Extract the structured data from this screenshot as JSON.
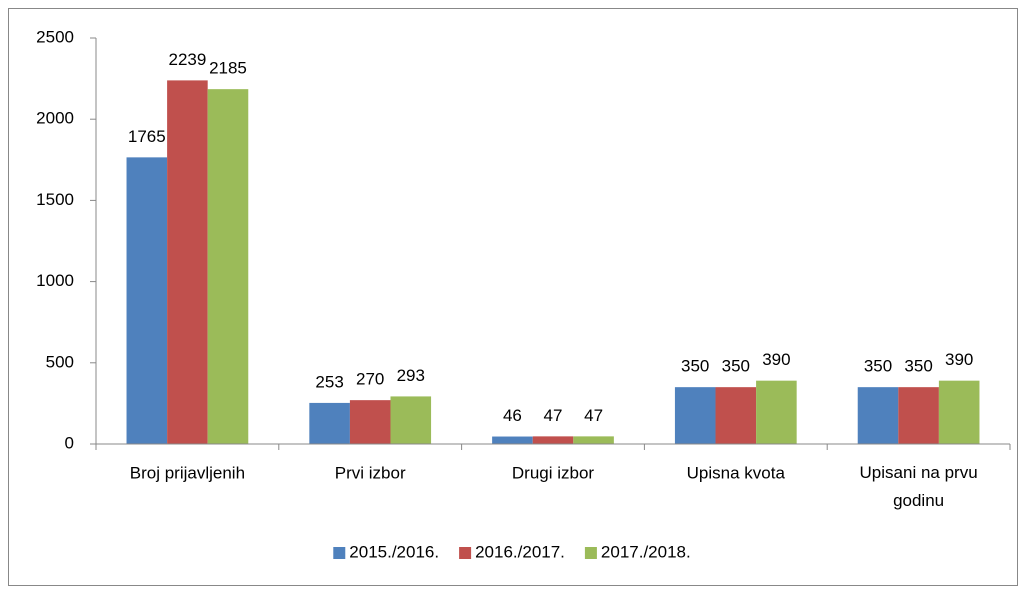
{
  "chart_data": {
    "type": "bar",
    "categories": [
      "Broj prijavljenih",
      "Prvi izbor",
      "Drugi izbor",
      "Upisna kvota",
      "Upisani na prvu godinu"
    ],
    "series": [
      {
        "name": "2015./2016.",
        "color": "#4f81bd",
        "values": [
          1765,
          253,
          46,
          350,
          350
        ]
      },
      {
        "name": "2016./2017.",
        "color": "#c0504d",
        "values": [
          2239,
          270,
          47,
          350,
          350
        ]
      },
      {
        "name": "2017./2018.",
        "color": "#9bbb59",
        "values": [
          2185,
          293,
          47,
          390,
          390
        ]
      }
    ],
    "ylim": [
      0,
      2500
    ],
    "yticks": [
      0,
      500,
      1000,
      1500,
      2000,
      2500
    ],
    "grid": false,
    "legend": "bottom"
  }
}
